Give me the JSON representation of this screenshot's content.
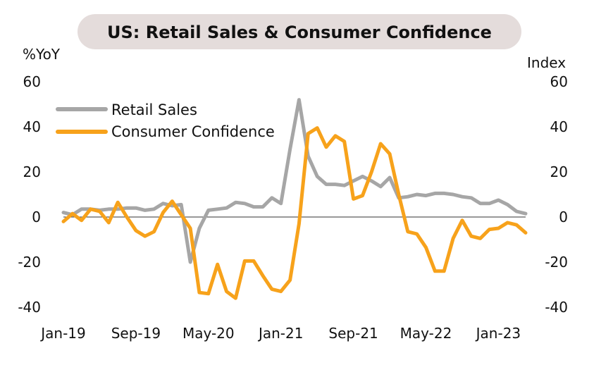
{
  "chart_data": {
    "type": "line",
    "title": "US: Retail Sales & Consumer Confidence",
    "y_left_label": "%YoY",
    "y_right_label": "Index",
    "ylim": [
      -40,
      60
    ],
    "y_ticks": [
      "60",
      "40",
      "20",
      "0",
      "-20",
      "-40"
    ],
    "x_ticks": [
      "Jan-19",
      "Sep-19",
      "May-20",
      "Jan-21",
      "Sep-21",
      "May-22",
      "Jan-23"
    ],
    "colors": {
      "retail": "#a6a6a6",
      "confidence": "#f7a21b",
      "zero_line": "#333333"
    },
    "legend_position": "top-left",
    "x_months": [
      "2019-01",
      "2019-02",
      "2019-03",
      "2019-04",
      "2019-05",
      "2019-06",
      "2019-07",
      "2019-08",
      "2019-09",
      "2019-10",
      "2019-11",
      "2019-12",
      "2020-01",
      "2020-02",
      "2020-03",
      "2020-04",
      "2020-05",
      "2020-06",
      "2020-07",
      "2020-08",
      "2020-09",
      "2020-10",
      "2020-11",
      "2020-12",
      "2021-01",
      "2021-02",
      "2021-03",
      "2021-04",
      "2021-05",
      "2021-06",
      "2021-07",
      "2021-08",
      "2021-09",
      "2021-10",
      "2021-11",
      "2021-12",
      "2022-01",
      "2022-02",
      "2022-03",
      "2022-04",
      "2022-05",
      "2022-06",
      "2022-07",
      "2022-08",
      "2022-09",
      "2022-10",
      "2022-11",
      "2022-12",
      "2023-01",
      "2023-02",
      "2023-03",
      "2023-04"
    ],
    "series": [
      {
        "name": "Retail Sales",
        "values": [
          2,
          1,
          3.5,
          3.5,
          3,
          3.5,
          3.5,
          4,
          4,
          3,
          3.5,
          6,
          5,
          5.5,
          -20,
          -5,
          3,
          3.5,
          4,
          6.5,
          6,
          4.5,
          4.5,
          8.5,
          6,
          30,
          52,
          27,
          18,
          14.5,
          14.5,
          14,
          16,
          18,
          16,
          13.5,
          17.5,
          8.5,
          9,
          10,
          9.5,
          10.5,
          10.5,
          10,
          9,
          8.5,
          6,
          6,
          7.5,
          5.5,
          2.5,
          1.5
        ]
      },
      {
        "name": "Consumer Confidence",
        "values": [
          -2,
          1.5,
          -1.5,
          3.5,
          2.5,
          -2.5,
          6.5,
          0,
          -6,
          -8.5,
          -6.5,
          2,
          7,
          1,
          -5,
          -33.5,
          -34,
          -21,
          -33,
          -36,
          -19.5,
          -19.5,
          -26,
          -32,
          -33,
          -28,
          -3,
          37,
          39.5,
          31,
          36,
          33.5,
          8,
          9.5,
          20,
          32.5,
          28,
          10,
          -6.5,
          -7.5,
          -13.5,
          -24,
          -24,
          -9.5,
          -1.5,
          -8.5,
          -9.5,
          -5.5,
          -5,
          -2.5,
          -3.5,
          -7
        ]
      }
    ]
  }
}
